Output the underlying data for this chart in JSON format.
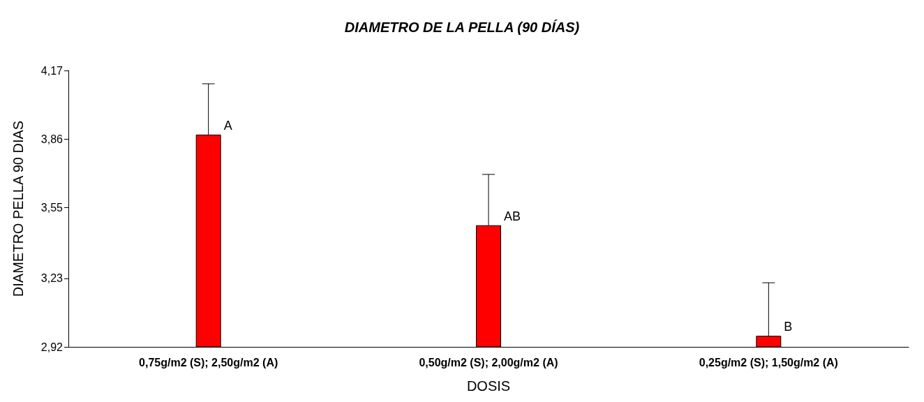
{
  "chart_data": {
    "type": "bar",
    "title": "DIAMETRO DE LA PELLA (90 DÍAS)",
    "xlabel": "DOSIS",
    "ylabel": "DIAMETRO PELLA 90 DIAS",
    "categories": [
      "0,75g/m2 (S); 2,50g/m2 (A)",
      "0,50g/m2 (S); 2,00g/m2 (A)",
      "0,25g/m2 (S); 1,50g/m2 (A)"
    ],
    "values": [
      3.88,
      3.47,
      2.97
    ],
    "errors": [
      [
        3.88,
        4.11
      ],
      [
        3.47,
        3.7
      ],
      [
        2.97,
        3.21
      ]
    ],
    "color": "#ff0000",
    "ylim": [
      2.92,
      4.17
    ],
    "yticks": [
      {
        "value": 2.92,
        "label": "2,92"
      },
      {
        "value": 3.23,
        "label": "3,23"
      },
      {
        "value": 3.55,
        "label": "3,55"
      },
      {
        "value": 3.86,
        "label": "3,86"
      },
      {
        "value": 4.17,
        "label": "4,17"
      }
    ],
    "annotations": [
      {
        "text": "A",
        "x": "0,75g/m2 (S); 2,50g/m2 (A)",
        "y": 3.88
      },
      {
        "text": "AB",
        "x": "0,50g/m2 (S); 2,00g/m2 (A)",
        "y": 3.47
      },
      {
        "text": "B",
        "x": "0,25g/m2 (S); 1,50g/m2 (A)",
        "y": 2.97
      }
    ],
    "grid": false
  }
}
